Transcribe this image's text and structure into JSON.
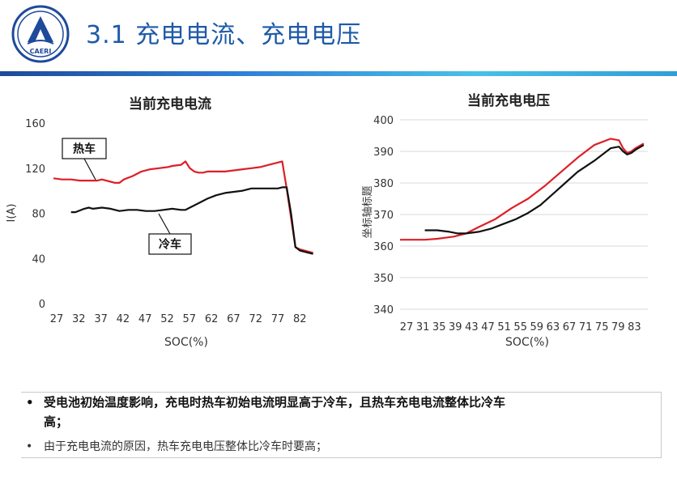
{
  "slide": {
    "title": "3.1 充电电流、充电电压",
    "logo_text": "CAERI"
  },
  "bullets": [
    {
      "line1": "受电池初始温度影响，充电时热车初始电流明显高于冷车，且热车充电电流整体比冷车",
      "line2": "高；"
    },
    {
      "line1": "由于充电电流的原因，热车充电电压整体比冷车时要高；"
    }
  ],
  "colors": {
    "hot": "#dd1f26",
    "cold": "#111111",
    "title": "#1e5aa8",
    "grid": "#d9d9d9"
  },
  "chart_data": [
    {
      "type": "line",
      "title": "当前充电电流",
      "xlabel": "SOC(%)",
      "ylabel": "I(A)",
      "x_ticks": [
        "27",
        "32",
        "37",
        "42",
        "47",
        "52",
        "57",
        "62",
        "67",
        "72",
        "77",
        "82"
      ],
      "xlim": [
        27,
        87
      ],
      "ylim": [
        0,
        160
      ],
      "y_ticks": [
        0,
        40,
        80,
        120,
        160
      ],
      "grid": false,
      "annotations": [
        "热车",
        "冷车"
      ],
      "series": [
        {
          "key": "hot",
          "x": [
            27,
            29,
            31,
            33,
            35,
            37,
            38,
            40,
            41,
            42,
            43,
            45,
            47,
            49,
            51,
            53,
            54,
            56,
            57,
            58,
            59,
            60,
            61,
            62,
            64,
            66,
            68,
            70,
            72,
            74,
            76,
            77,
            78,
            79,
            80,
            81,
            82,
            83,
            84,
            85,
            86
          ],
          "y": [
            111,
            110,
            110,
            109,
            109,
            109,
            110,
            108,
            107,
            107,
            110,
            113,
            117,
            119,
            120,
            121,
            122,
            123,
            126,
            120,
            117,
            116,
            116,
            117,
            117,
            117,
            118,
            119,
            120,
            121,
            123,
            124,
            125,
            126,
            102,
            76,
            50,
            48,
            47,
            46,
            45
          ]
        },
        {
          "key": "cold",
          "x": [
            31,
            32,
            34,
            35,
            36,
            38,
            40,
            42,
            44,
            46,
            48,
            50,
            52,
            54,
            56,
            57,
            58,
            60,
            62,
            64,
            66,
            68,
            70,
            72,
            74,
            76,
            77,
            78,
            79,
            80,
            81,
            82,
            83,
            84,
            85,
            86
          ],
          "y": [
            81,
            81,
            84,
            85,
            84,
            85,
            84,
            82,
            83,
            83,
            82,
            82,
            83,
            84,
            83,
            83,
            85,
            89,
            93,
            96,
            98,
            99,
            100,
            102,
            102,
            102,
            102,
            102,
            103,
            103,
            80,
            50,
            47,
            46,
            45,
            44
          ]
        }
      ]
    },
    {
      "type": "line",
      "title": "当前充电电压",
      "xlabel": "SOC(%)",
      "ylabel": "坐标轴标题",
      "x_ticks": [
        "27",
        "31",
        "35",
        "39",
        "43",
        "47",
        "51",
        "55",
        "59",
        "63",
        "67",
        "71",
        "75",
        "79",
        "83"
      ],
      "xlim": [
        27,
        87
      ],
      "ylim": [
        340,
        400
      ],
      "y_ticks": [
        340,
        350,
        360,
        370,
        380,
        390,
        400
      ],
      "grid": true,
      "series": [
        {
          "key": "hot",
          "x": [
            27,
            33,
            36,
            40,
            43,
            46,
            50,
            54,
            56,
            58,
            62,
            66,
            70,
            74,
            78,
            80,
            81,
            82,
            83,
            84,
            86
          ],
          "y": [
            362,
            362,
            362.3,
            363,
            364,
            366,
            368.5,
            372,
            373.5,
            375,
            379,
            383.5,
            388,
            392,
            394,
            393.5,
            391,
            389.5,
            390,
            391,
            392.5
          ]
        },
        {
          "key": "cold",
          "x": [
            33,
            36,
            39,
            41,
            43,
            46,
            49,
            52,
            55,
            58,
            61,
            64,
            67,
            70,
            74,
            78,
            80,
            81,
            82,
            83,
            84,
            86
          ],
          "y": [
            365,
            365,
            364.5,
            364,
            364,
            364.5,
            365.5,
            367,
            368.5,
            370.5,
            373,
            376.5,
            380,
            383.5,
            387,
            391,
            391.5,
            390,
            389,
            389.5,
            390.5,
            392
          ]
        }
      ]
    }
  ]
}
